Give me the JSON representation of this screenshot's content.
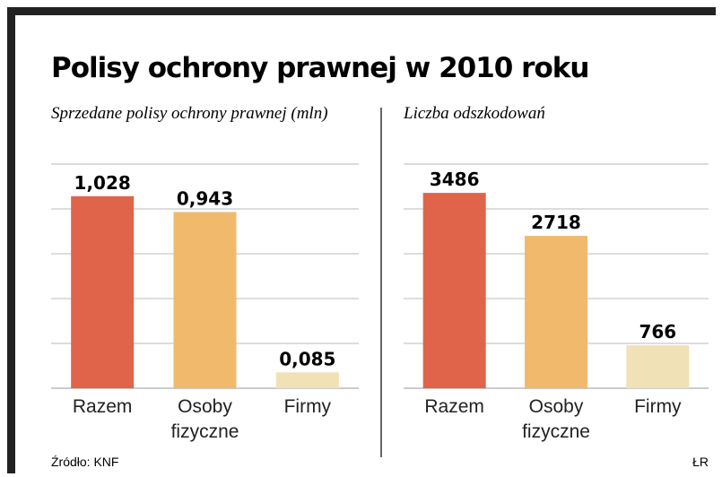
{
  "title": "Polisy ochrony prawnej w 2010 roku",
  "source": "Źródło: KNF",
  "credit": "ŁR",
  "chart_data": [
    {
      "type": "bar",
      "title": "Sprzedane polisy ochrony prawnej (mln)",
      "categories": [
        "Razem",
        "Osoby fizyczne",
        "Firmy"
      ],
      "values": [
        1.028,
        0.943,
        0.085
      ],
      "value_labels": [
        "1,028",
        "0,943",
        "0,085"
      ],
      "colors": [
        "#e0644a",
        "#f0b96c",
        "#f0e1b7"
      ],
      "ylim": [
        0,
        1.2
      ],
      "yticks": [
        0,
        0.24,
        0.48,
        0.72,
        0.96,
        1.2
      ],
      "grid": true
    },
    {
      "type": "bar",
      "title": "Liczba odszkodowań",
      "categories": [
        "Razem",
        "Osoby fizyczne",
        "Firmy"
      ],
      "values": [
        3486,
        2718,
        766
      ],
      "colors": [
        "#e0644a",
        "#f0b96c",
        "#f0e1b7"
      ],
      "ylim": [
        0,
        4000
      ],
      "yticks": [
        0,
        800,
        1600,
        2400,
        3200,
        4000
      ],
      "grid": true
    }
  ]
}
